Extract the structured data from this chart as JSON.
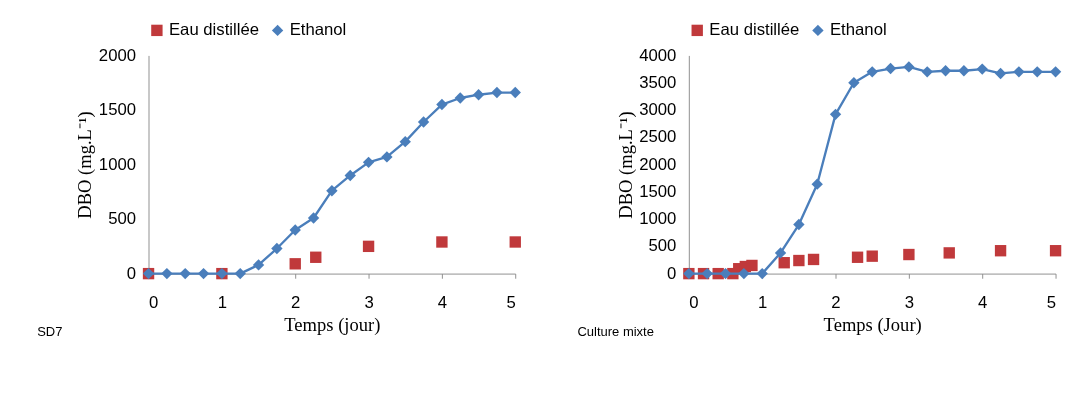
{
  "chart_data": [
    {
      "type": "line",
      "xlabel": "Temps (jour)",
      "ylabel": "DBO (mg.L⁻¹)",
      "xlim": [
        0,
        5
      ],
      "xticks": [
        0,
        1,
        2,
        3,
        4,
        5
      ],
      "ylim": [
        0,
        2000
      ],
      "yticks": [
        0,
        500,
        1000,
        1500,
        2000
      ],
      "grid": false,
      "legend": "top",
      "annotations": [
        "SD7"
      ],
      "series": [
        {
          "name": "Eau distillée",
          "type": "scatter",
          "marker": "square",
          "color": "#c0393b",
          "x": [
            0,
            1,
            2,
            2.28,
            3,
            4,
            5
          ],
          "values": [
            0,
            0,
            90,
            150,
            250,
            290,
            290
          ]
        },
        {
          "name": "Ethanol",
          "type": "line",
          "marker": "diamond",
          "color": "#4a7ebb",
          "x": [
            0,
            0.25,
            0.5,
            0.75,
            1,
            1.25,
            1.5,
            1.75,
            2,
            2.25,
            2.5,
            2.75,
            3,
            3.25,
            3.5,
            3.75,
            4,
            4.25,
            4.5,
            4.75,
            5
          ],
          "values": [
            0,
            0,
            0,
            0,
            0,
            0,
            80,
            230,
            400,
            510,
            760,
            900,
            1020,
            1070,
            1210,
            1390,
            1550,
            1610,
            1640,
            1660,
            1660
          ]
        }
      ]
    },
    {
      "type": "line",
      "xlabel": "Temps (Jour)",
      "ylabel": "DBO (mg.L⁻¹)",
      "xlim": [
        0,
        5
      ],
      "xticks": [
        0,
        1,
        2,
        3,
        4,
        5
      ],
      "ylim": [
        0,
        4000
      ],
      "yticks": [
        0,
        500,
        1000,
        1500,
        2000,
        2500,
        3000,
        3500,
        4000
      ],
      "grid": false,
      "legend": "top",
      "annotations": [
        "Culture mixte"
      ],
      "series": [
        {
          "name": "Eau distillée",
          "type": "scatter",
          "marker": "square",
          "color": "#c0393b",
          "x": [
            0,
            0.2,
            0.4,
            0.6,
            0.68,
            0.77,
            0.86,
            1.3,
            1.5,
            1.7,
            2.3,
            2.5,
            3,
            3.55,
            4.25,
            5
          ],
          "values": [
            0,
            0,
            0,
            0,
            90,
            130,
            150,
            200,
            240,
            260,
            300,
            320,
            350,
            380,
            420,
            420
          ]
        },
        {
          "name": "Ethanol",
          "type": "line",
          "marker": "diamond",
          "color": "#4a7ebb",
          "x": [
            0,
            0.25,
            0.5,
            0.75,
            1,
            1.25,
            1.5,
            1.75,
            2,
            2.25,
            2.5,
            2.75,
            3,
            3.25,
            3.5,
            3.75,
            4,
            4.25,
            4.5,
            4.75,
            5
          ],
          "values": [
            0,
            0,
            0,
            0,
            0,
            380,
            900,
            1640,
            2920,
            3500,
            3700,
            3760,
            3790,
            3700,
            3720,
            3720,
            3750,
            3670,
            3700,
            3700,
            3700
          ]
        }
      ]
    }
  ]
}
